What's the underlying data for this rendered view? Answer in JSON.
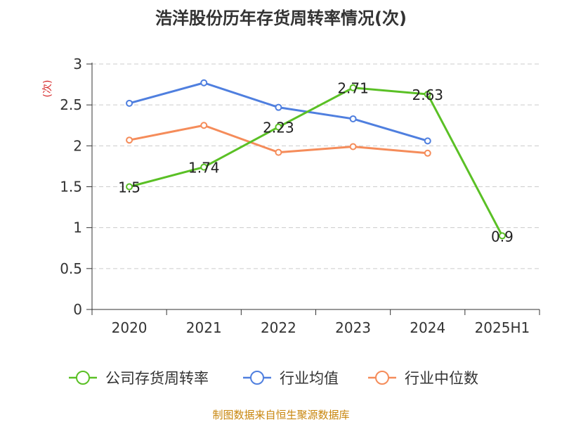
{
  "chart_data": {
    "type": "line",
    "title": "浩洋股份历年存货周转率情况(次)",
    "ylabel": "(次)",
    "xlabel": "",
    "categories": [
      "2020",
      "2021",
      "2022",
      "2023",
      "2024",
      "2025H1"
    ],
    "ylim": [
      0,
      3
    ],
    "yticks": [
      "0",
      "0.5",
      "1",
      "1.5",
      "2",
      "2.5",
      "3"
    ],
    "grid": true,
    "legend_position": "bottom",
    "series": [
      {
        "name": "公司存货周转率",
        "color": "#5ac025",
        "values": [
          1.5,
          1.74,
          2.23,
          2.71,
          2.63,
          0.9
        ],
        "labels": [
          "1.5",
          "1.74",
          "2.23",
          "2.71",
          "2.63",
          "0.9"
        ]
      },
      {
        "name": "行业均值",
        "color": "#4f7fdf",
        "values": [
          2.52,
          2.77,
          2.47,
          2.33,
          2.06,
          null
        ]
      },
      {
        "name": "行业中位数",
        "color": "#f58c5a",
        "values": [
          2.07,
          2.25,
          1.92,
          1.99,
          1.91,
          null
        ]
      }
    ]
  },
  "source": "制图数据来自恒生聚源数据库"
}
